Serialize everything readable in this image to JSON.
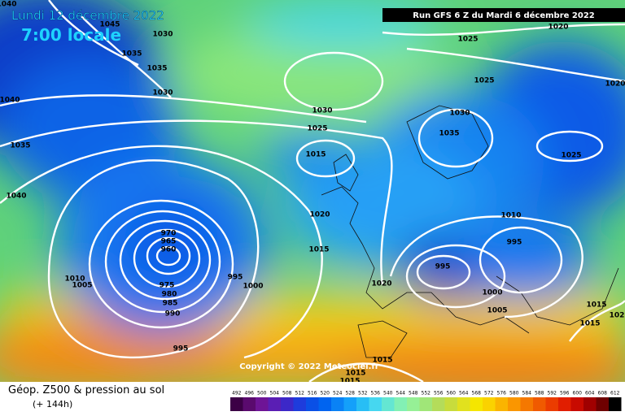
{
  "header": {
    "date": "Lundi 12 décembre 2022",
    "time": "7:00 locale",
    "run": "Run GFS 6 Z du Mardi 6 décembre 2022"
  },
  "copyright": "Copyright © 2022 Meteociel.fr",
  "footer": {
    "title": "Géop. Z500 & pression au sol",
    "lead": "(+ 144h)"
  },
  "isobar_labels": [
    "1040",
    "1045",
    "1030",
    "1035",
    "1035",
    "1030",
    "1040",
    "1035",
    "1040",
    "1030",
    "1025",
    "1015",
    "1020",
    "1015",
    "970",
    "965",
    "960",
    "975",
    "980",
    "985",
    "990",
    "995",
    "1000",
    "1010",
    "1005",
    "995",
    "1020",
    "995",
    "1000",
    "1005",
    "995",
    "1010",
    "1025",
    "1035",
    "1030",
    "1025",
    "1025",
    "1020",
    "1020",
    "1015",
    "1015",
    "102",
    "1015",
    "1015",
    "1015"
  ],
  "legend": {
    "values": [
      492,
      496,
      500,
      504,
      508,
      512,
      516,
      520,
      524,
      528,
      532,
      536,
      540,
      544,
      548,
      552,
      556,
      560,
      564,
      568,
      572,
      576,
      580,
      584,
      588,
      592,
      596,
      600,
      604,
      608,
      612
    ],
    "colors": [
      "#3c0046",
      "#5a0a6e",
      "#6e1496",
      "#5a1eb4",
      "#3c28c8",
      "#1e3cdc",
      "#0a50e6",
      "#0064f0",
      "#0a82f5",
      "#14a0fa",
      "#28bef5",
      "#46d7f0",
      "#64e6d2",
      "#82f0b4",
      "#96f096",
      "#a0e678",
      "#b4dc5a",
      "#c8dc3c",
      "#e1e11e",
      "#f5e600",
      "#fad200",
      "#fab400",
      "#fa9600",
      "#f57800",
      "#f05a00",
      "#eb3c00",
      "#e11e00",
      "#c80a00",
      "#a00000",
      "#6e0000",
      "#000000"
    ]
  }
}
